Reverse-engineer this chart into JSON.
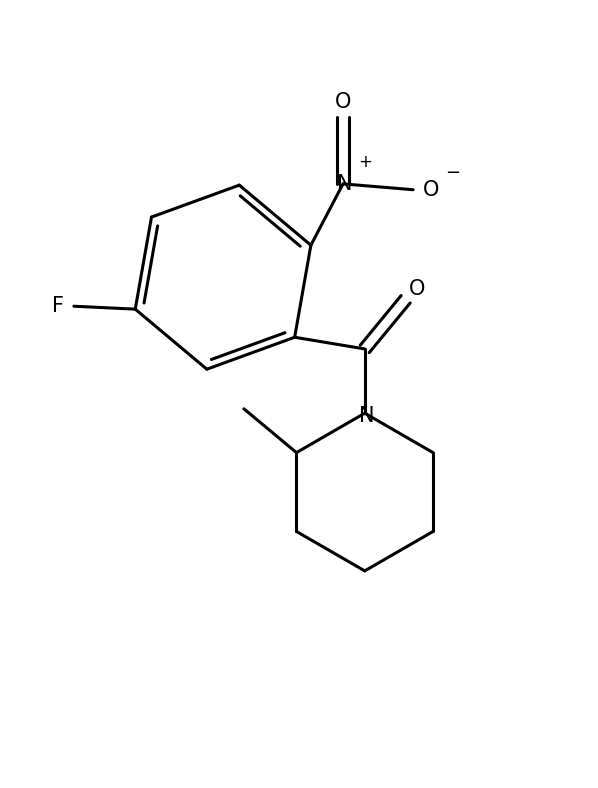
{
  "bg_color": "#ffffff",
  "line_color": "#000000",
  "line_width": 2.2,
  "font_size": 15,
  "figsize": [
    5.98,
    7.88
  ],
  "dpi": 100,
  "xlim": [
    0,
    10
  ],
  "ylim": [
    0,
    13.2
  ]
}
